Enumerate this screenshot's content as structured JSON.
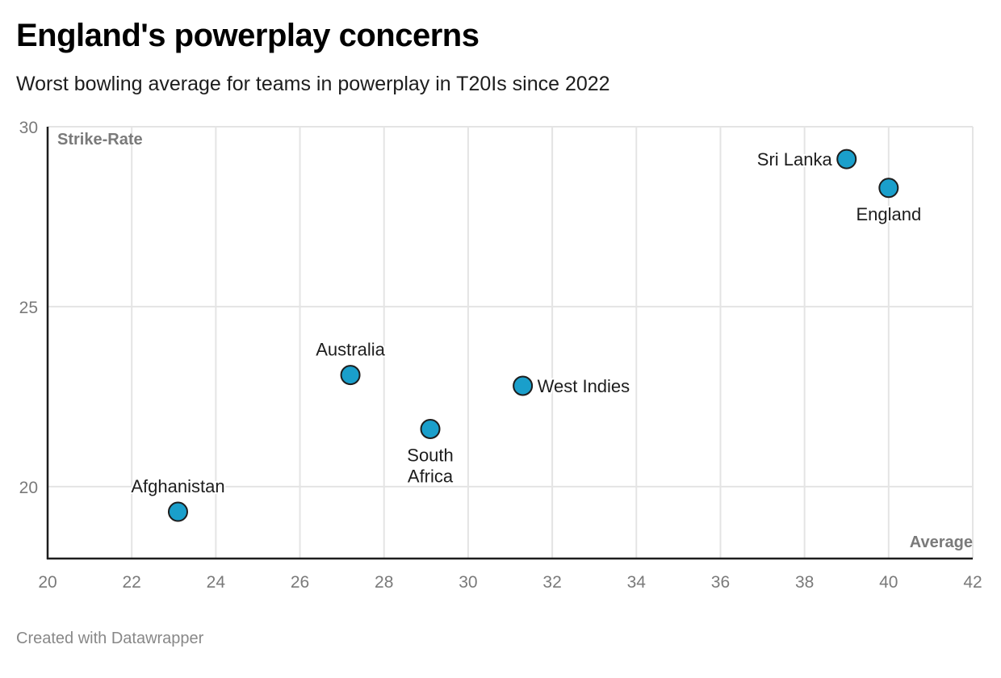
{
  "header": {
    "title": "England's powerplay concerns",
    "subtitle": "Worst bowling average for teams in powerplay in T20Is since 2022"
  },
  "footer": {
    "credit": "Created with Datawrapper"
  },
  "colors": {
    "point_fill": "#1a9fcb",
    "point_stroke": "#1d1d1d",
    "grid": "#e4e4e4",
    "axis": "#1d1d1d"
  },
  "chart_data": {
    "type": "scatter",
    "title": "England's powerplay concerns",
    "subtitle": "Worst bowling average for teams in powerplay in T20Is since 2022",
    "xlabel": "Average",
    "ylabel": "Strike-Rate",
    "xlim": [
      20,
      42
    ],
    "ylim": [
      18,
      30
    ],
    "xticks": [
      20,
      22,
      24,
      26,
      28,
      30,
      32,
      34,
      36,
      38,
      40,
      42
    ],
    "yticks": [
      20,
      25,
      30
    ],
    "grid": true,
    "points": [
      {
        "label": "Afghanistan",
        "x": 23.1,
        "y": 19.3,
        "label_pos": "top"
      },
      {
        "label": "Australia",
        "x": 27.2,
        "y": 23.1,
        "label_pos": "top"
      },
      {
        "label": "South Africa",
        "x": 29.1,
        "y": 21.6,
        "label_pos": "bottom"
      },
      {
        "label": "West Indies",
        "x": 31.3,
        "y": 22.8,
        "label_pos": "right"
      },
      {
        "label": "Sri Lanka",
        "x": 39.0,
        "y": 29.1,
        "label_pos": "left"
      },
      {
        "label": "England",
        "x": 40.0,
        "y": 28.3,
        "label_pos": "bottom"
      }
    ]
  }
}
